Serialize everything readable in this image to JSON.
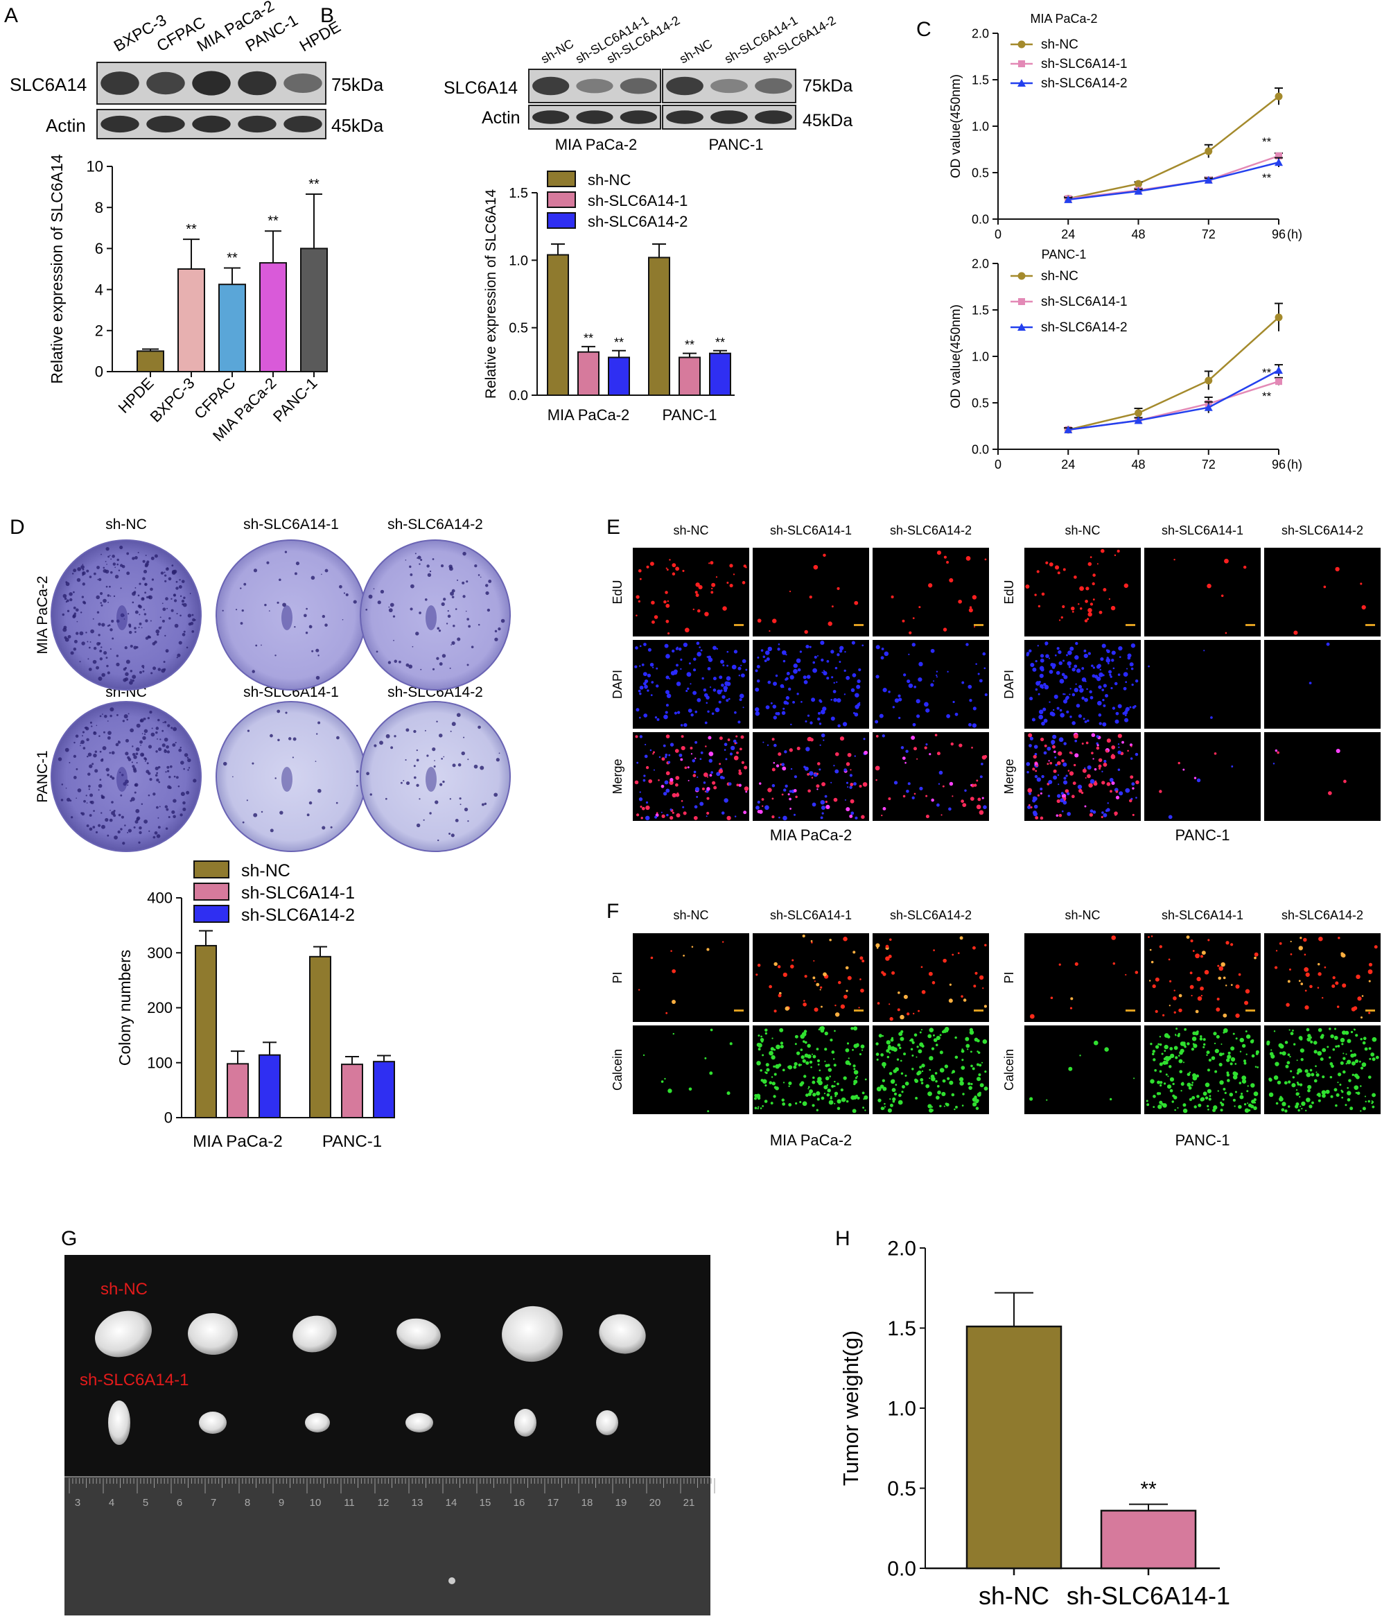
{
  "colors": {
    "ncBar": "#8f7a2e",
    "sh1Bar": "#d67a9c",
    "sh2Bar": "#2f2ff2",
    "hpde": "#8f7a2e",
    "bxpc": "#e7b0b0",
    "cfpac": "#5aa6d8",
    "mia": "#d95ad9",
    "panc": "#5a5a5a",
    "lineNC": "#a48a2c",
    "line1": "#e389b6",
    "line2": "#2340ee",
    "red": "#e31b1b"
  },
  "panels": {
    "A": {
      "letter": "A",
      "blot_lanes": [
        "BXPC-3",
        "CFPAC",
        "MIA PaCa-2",
        "PANC-1",
        "HPDE"
      ],
      "blot_rows": [
        {
          "label": "SLC6A14",
          "size": "75kDa"
        },
        {
          "label": "Actin",
          "size": "45kDa"
        }
      ]
    },
    "B": {
      "letter": "B",
      "blot_lanes": [
        "sh-NC",
        "sh-SLC6A14-1",
        "sh-SLC6A14-2",
        "sh-NC",
        "sh-SLC6A14-1",
        "sh-SLC6A14-2"
      ],
      "blot_rows": [
        {
          "label": "SLC6A14",
          "size": "75kDa"
        },
        {
          "label": "Actin",
          "size": "45kDa"
        }
      ],
      "blot_groups": [
        "MIA PaCa-2",
        "PANC-1"
      ]
    },
    "C": {
      "letter": "C"
    },
    "D": {
      "letter": "D",
      "rows": [
        "MIA PaCa-2",
        "PANC-1"
      ],
      "cols_top": [
        "sh-NC",
        "sh-SLC6A14-1",
        "sh-SLC6A14-2"
      ],
      "cols_bottom": [
        "sh-NC",
        "sh-SLC6A14-1",
        "sh-SLC6A14-2"
      ]
    },
    "E": {
      "letter": "E",
      "cols": [
        "sh-NC",
        "sh-SLC6A14-1",
        "sh-SLC6A14-2"
      ],
      "rows": [
        "EdU",
        "DAPI",
        "Merge"
      ],
      "groups": [
        "MIA PaCa-2",
        "PANC-1"
      ]
    },
    "F": {
      "letter": "F",
      "cols": [
        "sh-NC",
        "sh-SLC6A14-1",
        "sh-SLC6A14-2"
      ],
      "rows": [
        "PI",
        "Calcein"
      ],
      "groups": [
        "MIA PaCa-2",
        "PANC-1"
      ]
    },
    "G": {
      "letter": "G",
      "label_top": "sh-NC",
      "label_bottom": "sh-SLC6A14-1",
      "ruler": [
        "3",
        "4",
        "5",
        "6",
        "7",
        "8",
        "9",
        "10",
        "11",
        "12",
        "13",
        "14",
        "15",
        "16",
        "17",
        "18",
        "19",
        "20",
        "21"
      ]
    },
    "H": {
      "letter": "H"
    }
  },
  "chart_data": [
    {
      "id": "A",
      "type": "bar",
      "categories": [
        "HPDE",
        "BXPC-3",
        "CFPAC",
        "MIA PaCa-2",
        "PANC-1"
      ],
      "values": [
        1.0,
        5.0,
        4.25,
        5.3,
        6.0
      ],
      "errors": [
        0.1,
        1.45,
        0.8,
        1.55,
        2.65
      ],
      "sig": [
        "",
        "**",
        "**",
        "**",
        "**"
      ],
      "ylabel": "Relative expression of SLC6A14",
      "ylim": [
        0,
        10
      ],
      "yticks": [
        0,
        2,
        4,
        6,
        8,
        10
      ]
    },
    {
      "id": "B",
      "type": "bar",
      "categories": [
        "MIA PaCa-2",
        "PANC-1"
      ],
      "series": [
        {
          "name": "sh-NC",
          "values": [
            1.04,
            1.02
          ],
          "errors": [
            0.08,
            0.1
          ],
          "sig": [
            "",
            ""
          ]
        },
        {
          "name": "sh-SLC6A14-1",
          "values": [
            0.32,
            0.28
          ],
          "errors": [
            0.04,
            0.03
          ],
          "sig": [
            "**",
            "**"
          ]
        },
        {
          "name": "sh-SLC6A14-2",
          "values": [
            0.28,
            0.31
          ],
          "errors": [
            0.05,
            0.02
          ],
          "sig": [
            "**",
            "**"
          ]
        }
      ],
      "ylabel": "Relative expression of SLC6A14",
      "ylim": [
        0,
        1.5
      ],
      "yticks": [
        "0.0",
        "0.5",
        "1.0",
        "1.5"
      ],
      "legend": "top-left"
    },
    {
      "id": "C1",
      "type": "line",
      "title": "MIA PaCa-2",
      "x": [
        24,
        48,
        72,
        96
      ],
      "xticks": [
        0,
        24,
        48,
        72,
        96
      ],
      "xunit": "(h)",
      "series": [
        {
          "name": "sh-NC",
          "values": [
            0.22,
            0.38,
            0.73,
            1.32
          ],
          "errors": [
            0.02,
            0.02,
            0.07,
            0.09
          ]
        },
        {
          "name": "sh-SLC6A14-1",
          "values": [
            0.22,
            0.31,
            0.42,
            0.68
          ],
          "errors": [
            0.02,
            0.02,
            0.03,
            0.03
          ]
        },
        {
          "name": "sh-SLC6A14-2",
          "values": [
            0.21,
            0.3,
            0.42,
            0.61
          ],
          "errors": [
            0.02,
            0.02,
            0.02,
            0.05
          ]
        }
      ],
      "sig": [
        "**",
        "**"
      ],
      "ylabel": "OD value(450nm)",
      "ylim": [
        0,
        2
      ],
      "yticks": [
        "0.0",
        "0.5",
        "1.0",
        "1.5",
        "2.0"
      ]
    },
    {
      "id": "C2",
      "type": "line",
      "title": "PANC-1",
      "x": [
        24,
        48,
        72,
        96
      ],
      "xticks": [
        0,
        24,
        48,
        72,
        96
      ],
      "xunit": "(h)",
      "series": [
        {
          "name": "sh-NC",
          "values": [
            0.21,
            0.39,
            0.74,
            1.42
          ],
          "errors": [
            0.02,
            0.05,
            0.1,
            0.15
          ]
        },
        {
          "name": "sh-SLC6A14-1",
          "values": [
            0.21,
            0.31,
            0.49,
            0.73
          ],
          "errors": [
            0.02,
            0.03,
            0.07,
            0.04
          ]
        },
        {
          "name": "sh-SLC6A14-2",
          "values": [
            0.21,
            0.31,
            0.45,
            0.85
          ],
          "errors": [
            0.02,
            0.03,
            0.06,
            0.06
          ]
        }
      ],
      "sig": [
        "**",
        "**"
      ],
      "ylabel": "OD value(450nm)",
      "ylim": [
        0,
        2
      ],
      "yticks": [
        "0.0",
        "0.5",
        "1.0",
        "1.5",
        "2.0"
      ]
    },
    {
      "id": "D",
      "type": "bar",
      "categories": [
        "MIA PaCa-2",
        "PANC-1"
      ],
      "series": [
        {
          "name": "sh-NC",
          "values": [
            313,
            293
          ],
          "errors": [
            27,
            18
          ]
        },
        {
          "name": "sh-SLC6A14-1",
          "values": [
            98,
            97
          ],
          "errors": [
            23,
            14
          ]
        },
        {
          "name": "sh-SLC6A14-2",
          "values": [
            114,
            102
          ],
          "errors": [
            23,
            11
          ]
        }
      ],
      "ylabel": "Colony numbers",
      "ylim": [
        0,
        400
      ],
      "yticks": [
        0,
        100,
        200,
        300,
        400
      ],
      "legend": "top"
    },
    {
      "id": "H",
      "type": "bar",
      "categories": [
        "sh-NC",
        "sh-SLC6A14-1"
      ],
      "values": [
        1.51,
        0.36
      ],
      "errors": [
        0.21,
        0.04
      ],
      "sig": [
        "",
        "**"
      ],
      "ylabel": "Tumor weight(g)",
      "ylim": [
        0,
        2
      ],
      "yticks": [
        "0.0",
        "0.5",
        "1.0",
        "1.5",
        "2.0"
      ]
    }
  ]
}
